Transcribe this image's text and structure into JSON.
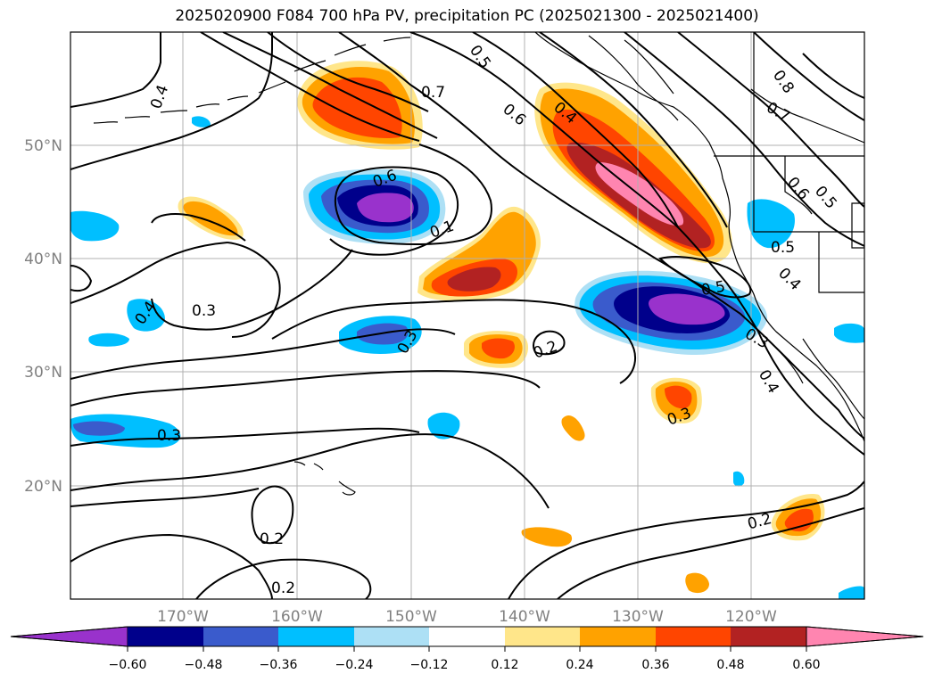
{
  "title": "2025020900 F084 700 hPa PV, precipitation PC (2025021300 - 2025021400)",
  "map": {
    "lat_labels": [
      "50°N",
      "40°N",
      "30°N",
      "20°N"
    ],
    "lon_labels": [
      "170°W",
      "160°W",
      "150°W",
      "140°W",
      "130°W",
      "120°W"
    ],
    "contour_labels": [
      "0.4",
      "0.5",
      "0.7",
      "0.6",
      "0.4",
      "0.8",
      "0.7",
      "0.6",
      "0.5",
      "0.6",
      "0.1",
      "0.5",
      "0.4",
      "0.4",
      "0.3",
      "0.2",
      "0.3",
      "0.3",
      "0.4",
      "0.3",
      "0.3",
      "0.2",
      "0.2",
      "0.2",
      "0.5"
    ],
    "colors": {
      "neg_060": "#9932cc",
      "neg_048": "#00008b",
      "neg_036": "#3a5bcc",
      "neg_024": "#00bfff",
      "neg_012": "#ade0f5",
      "zero": "#ffffff",
      "pos_012": "#ffe68a",
      "pos_024": "#ffa200",
      "pos_036": "#ff4500",
      "pos_048": "#b22222",
      "pos_060": "#ff85b0"
    }
  },
  "colorbar": {
    "ticks": [
      "−0.60",
      "−0.48",
      "−0.36",
      "−0.24",
      "−0.12",
      "0.12",
      "0.24",
      "0.36",
      "0.48",
      "0.60"
    ],
    "levels": [
      -0.72,
      -0.6,
      -0.48,
      -0.36,
      -0.24,
      -0.12,
      0.12,
      0.24,
      0.36,
      0.48,
      0.6,
      0.72
    ],
    "colors": [
      "#9932cc",
      "#00008b",
      "#3a5bcc",
      "#00bfff",
      "#ade0f5",
      "#ffffff",
      "#ffe68a",
      "#ffa200",
      "#ff4500",
      "#b22222",
      "#ff85b0"
    ]
  }
}
